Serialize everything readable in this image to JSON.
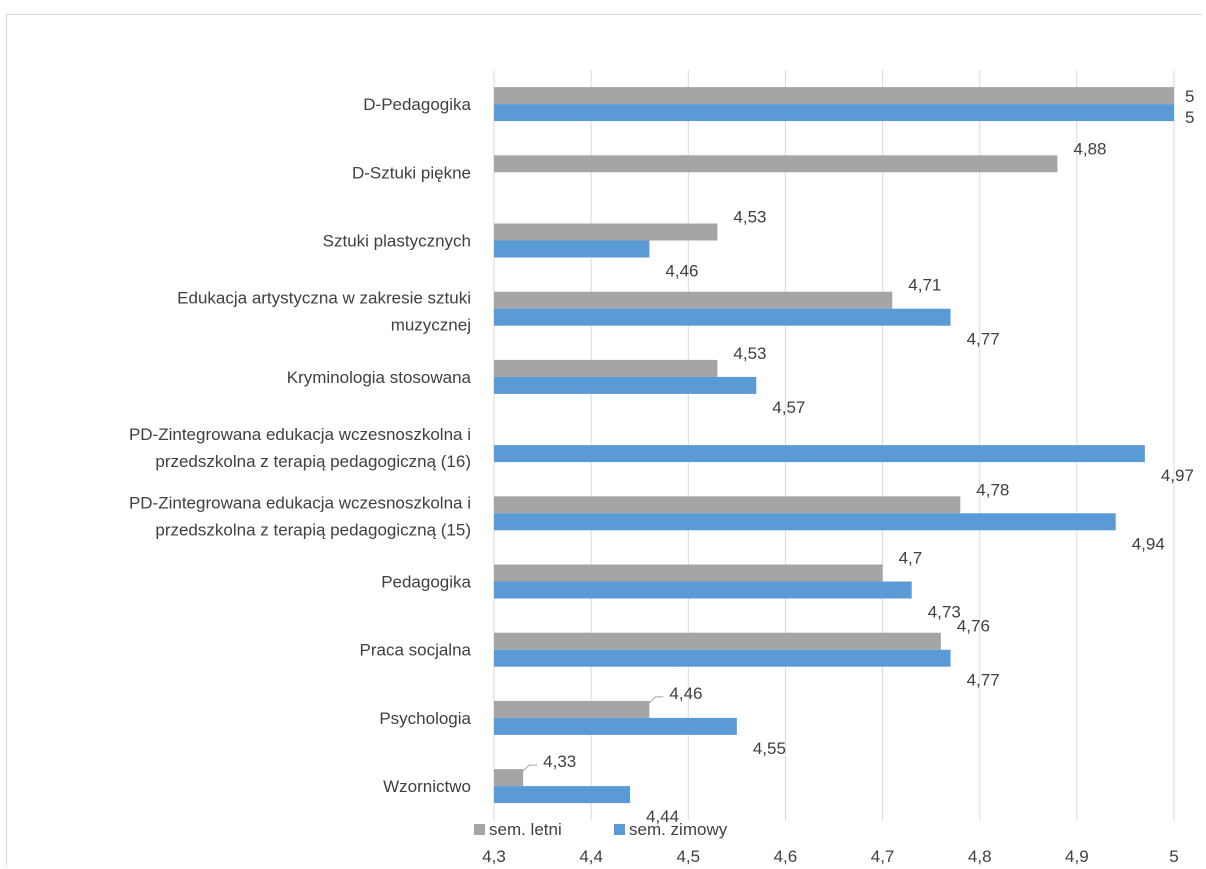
{
  "chart_data": {
    "type": "bar",
    "orientation": "horizontal",
    "categories": [
      [
        "D-Pedagogika"
      ],
      [
        "D-Sztuki piękne"
      ],
      [
        "Sztuki plastycznych"
      ],
      [
        "Edukacja artystyczna w zakresie sztuki",
        "muzycznej"
      ],
      [
        "Kryminologia stosowana"
      ],
      [
        "PD-Zintegrowana edukacja wczesnoszkolna i",
        "przedszkolna z terapią pedagogiczną (16)"
      ],
      [
        "PD-Zintegrowana edukacja wczesnoszkolna i",
        "przedszkolna z terapią pedagogiczną (15)"
      ],
      [
        "Pedagogika"
      ],
      [
        "Praca socjalna"
      ],
      [
        "Psychologia"
      ],
      [
        "Wzornictwo"
      ]
    ],
    "series": [
      {
        "name": "sem. letni",
        "color": "#a5a5a5",
        "values": [
          5,
          4.88,
          4.53,
          4.71,
          4.53,
          null,
          4.78,
          4.7,
          4.76,
          4.46,
          4.33
        ],
        "labels": [
          "5",
          "4,88",
          "4,53",
          "4,71",
          "4,53",
          "",
          "4,78",
          "4,7",
          "4,76",
          "4,46",
          "4,33"
        ]
      },
      {
        "name": "sem. zimowy",
        "color": "#5b9bd5",
        "values": [
          5,
          null,
          4.46,
          4.77,
          4.57,
          4.97,
          4.94,
          4.73,
          4.77,
          4.55,
          4.44
        ],
        "labels": [
          "5",
          "",
          "4,46",
          "4,77",
          "4,57",
          "4,97",
          "4,94",
          "4,73",
          "4,77",
          "4,55",
          "4,44"
        ]
      }
    ],
    "xlim": [
      4.3,
      5
    ],
    "xticks": [
      4.3,
      4.4,
      4.5,
      4.6,
      4.7,
      4.8,
      4.9,
      5
    ],
    "xtick_labels": [
      "4,3",
      "4,4",
      "4,5",
      "4,6",
      "4,7",
      "4,8",
      "4,9",
      "5"
    ],
    "grid": "vertical",
    "legend": "bottom-left",
    "title": "",
    "xlabel": "",
    "ylabel": ""
  }
}
